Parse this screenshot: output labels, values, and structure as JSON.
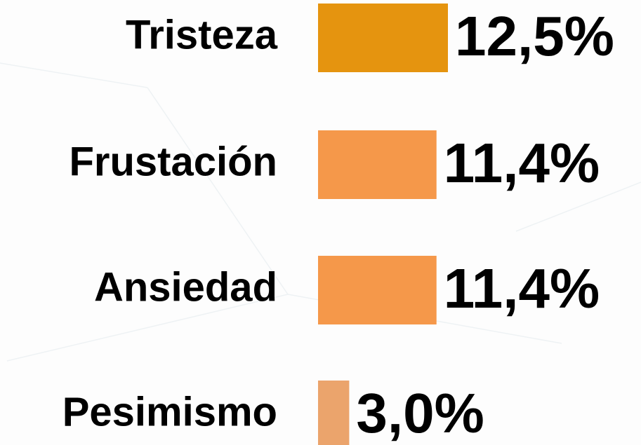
{
  "chart_data": {
    "type": "hbar",
    "categories": [
      "Tristeza",
      "Frustación",
      "Ansiedad",
      "Pesimismo"
    ],
    "values": [
      12.5,
      11.4,
      11.4,
      3.0
    ],
    "value_labels": [
      "12,5%",
      "11,4%",
      "11,4%",
      "3,0%"
    ],
    "colors": [
      "#e5940f",
      "#f5984a",
      "#f5984a",
      "#eba46c"
    ]
  }
}
